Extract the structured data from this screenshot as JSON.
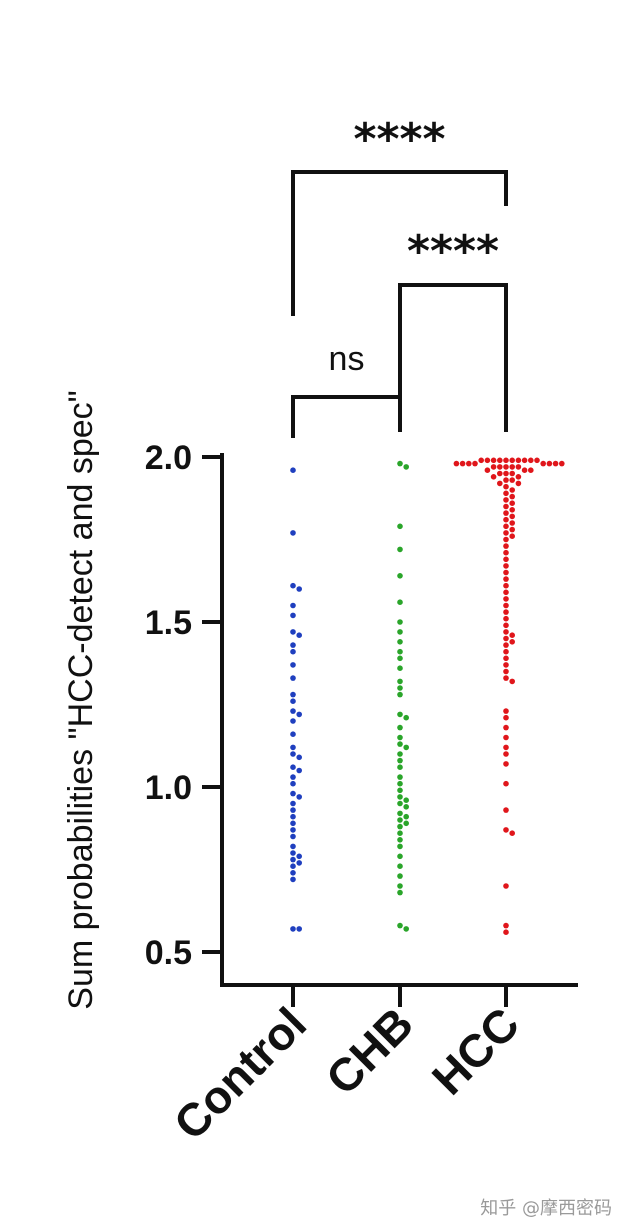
{
  "chart_data": {
    "type": "scatter",
    "ylabel": "Sum probabilities \"HCC-detect and spec\"",
    "ylim": [
      0.4,
      2.0
    ],
    "yticks": [
      "0.5",
      "1.0",
      "1.5",
      "2.0"
    ],
    "ytick_values": [
      0.5,
      1.0,
      1.5,
      2.0
    ],
    "categories": [
      "Control",
      "CHB",
      "HCC"
    ],
    "series": [
      {
        "category": "Control",
        "color": "#1f3fbf",
        "values": [
          1.96,
          1.77,
          1.61,
          1.6,
          1.55,
          1.52,
          1.47,
          1.46,
          1.43,
          1.41,
          1.37,
          1.33,
          1.28,
          1.26,
          1.23,
          1.22,
          1.2,
          1.16,
          1.12,
          1.1,
          1.09,
          1.06,
          1.05,
          1.03,
          1.01,
          0.98,
          0.97,
          0.95,
          0.93,
          0.91,
          0.89,
          0.87,
          0.85,
          0.82,
          0.8,
          0.79,
          0.78,
          0.77,
          0.76,
          0.74,
          0.72,
          0.57,
          0.57
        ]
      },
      {
        "category": "CHB",
        "color": "#2aa52a",
        "values": [
          1.98,
          1.97,
          1.79,
          1.72,
          1.64,
          1.56,
          1.5,
          1.47,
          1.44,
          1.41,
          1.39,
          1.36,
          1.32,
          1.3,
          1.28,
          1.22,
          1.21,
          1.18,
          1.15,
          1.13,
          1.12,
          1.1,
          1.08,
          1.06,
          1.03,
          1.01,
          0.99,
          0.97,
          0.96,
          0.95,
          0.94,
          0.92,
          0.91,
          0.9,
          0.89,
          0.88,
          0.86,
          0.84,
          0.82,
          0.79,
          0.76,
          0.73,
          0.7,
          0.68,
          0.58,
          0.57
        ]
      },
      {
        "category": "HCC",
        "color": "#e0161b",
        "values": [
          1.99,
          1.99,
          1.99,
          1.99,
          1.99,
          1.99,
          1.99,
          1.99,
          1.99,
          1.99,
          1.98,
          1.98,
          1.98,
          1.98,
          1.98,
          1.98,
          1.98,
          1.98,
          1.97,
          1.97,
          1.97,
          1.97,
          1.97,
          1.96,
          1.96,
          1.96,
          1.95,
          1.95,
          1.95,
          1.94,
          1.94,
          1.93,
          1.93,
          1.92,
          1.92,
          1.91,
          1.9,
          1.89,
          1.88,
          1.87,
          1.86,
          1.85,
          1.84,
          1.83,
          1.82,
          1.81,
          1.8,
          1.79,
          1.78,
          1.77,
          1.76,
          1.75,
          1.73,
          1.71,
          1.69,
          1.67,
          1.65,
          1.63,
          1.61,
          1.59,
          1.57,
          1.55,
          1.53,
          1.51,
          1.49,
          1.47,
          1.46,
          1.45,
          1.44,
          1.43,
          1.41,
          1.39,
          1.37,
          1.35,
          1.33,
          1.32,
          1.23,
          1.21,
          1.18,
          1.15,
          1.12,
          1.1,
          1.07,
          1.01,
          0.93,
          0.87,
          0.86,
          0.7,
          0.58,
          0.56
        ]
      }
    ],
    "annotations": [
      {
        "from": "Control",
        "to": "CHB",
        "label": "ns"
      },
      {
        "from": "CHB",
        "to": "HCC",
        "label": "****"
      },
      {
        "from": "Control",
        "to": "HCC",
        "label": "****"
      }
    ]
  },
  "watermark": "知乎 @摩西密码"
}
